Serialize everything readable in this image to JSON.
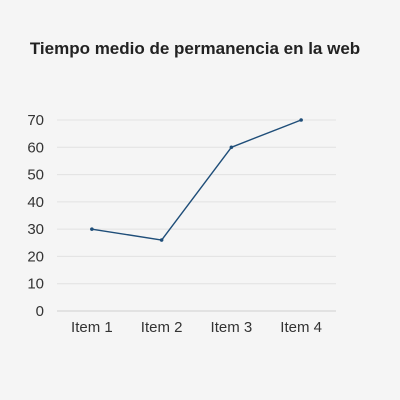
{
  "chart_data": {
    "type": "line",
    "title": "Tiempo medio de permanencia en la web",
    "xlabel": "",
    "ylabel": "",
    "categories": [
      "Item 1",
      "Item 2",
      "Item 3",
      "Item 4"
    ],
    "series": [
      {
        "values": [
          30,
          26,
          60,
          70
        ],
        "color": "#1f4e79"
      }
    ],
    "ylim": [
      0,
      70
    ],
    "yticks": [
      0,
      10,
      20,
      30,
      40,
      50,
      60,
      70
    ],
    "grid": true,
    "legend": "none"
  }
}
